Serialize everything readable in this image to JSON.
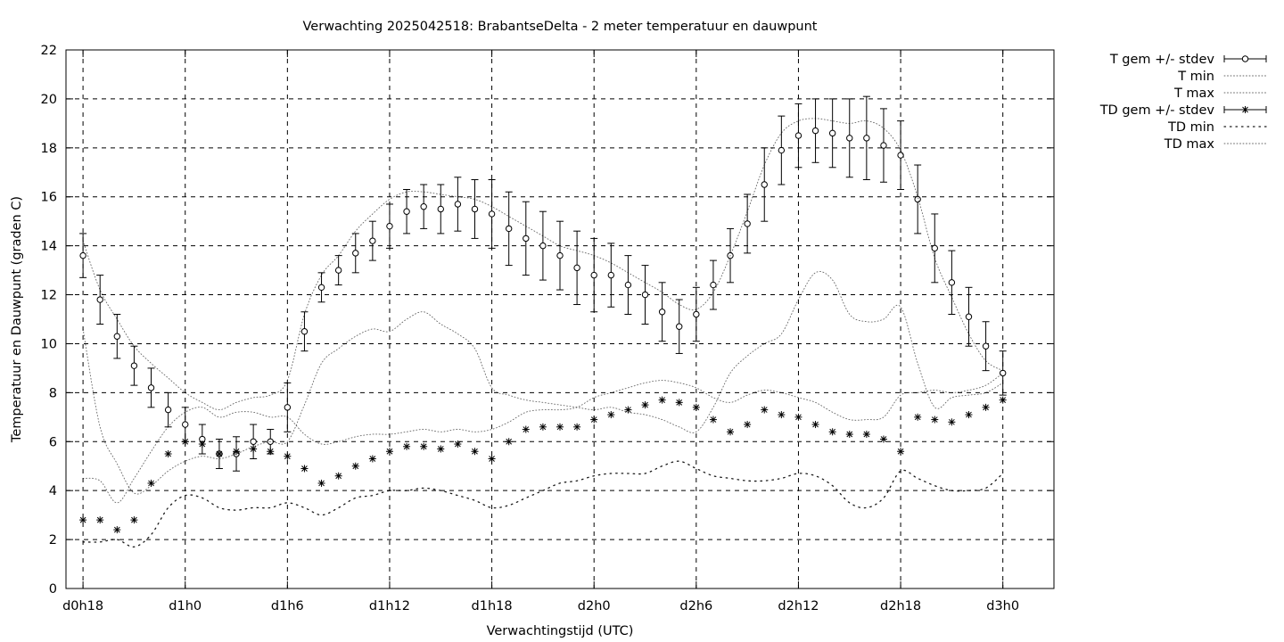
{
  "chart_data": {
    "type": "line",
    "title": "Verwachting 2025042518: BrabantseDelta - 2 meter temperatuur en dauwpunt",
    "xlabel": "Verwachtingstijd (UTC)",
    "ylabel": "Temperatuur en Dauwpunt (graden C)",
    "xlim": [
      17,
      75
    ],
    "ylim": [
      0,
      22
    ],
    "yticks": [
      0,
      2,
      4,
      6,
      8,
      10,
      12,
      14,
      16,
      18,
      20,
      22
    ],
    "xticks": [
      {
        "x": 18,
        "label": "d0h18"
      },
      {
        "x": 24,
        "label": "d1h0"
      },
      {
        "x": 30,
        "label": "d1h6"
      },
      {
        "x": 36,
        "label": "d1h12"
      },
      {
        "x": 42,
        "label": "d1h18"
      },
      {
        "x": 48,
        "label": "d2h0"
      },
      {
        "x": 54,
        "label": "d2h6"
      },
      {
        "x": 60,
        "label": "d2h12"
      },
      {
        "x": 66,
        "label": "d2h18"
      },
      {
        "x": 72,
        "label": "d3h0"
      }
    ],
    "grid": true,
    "legend_position": "outside-top-right",
    "x": [
      18,
      19,
      20,
      21,
      22,
      23,
      24,
      25,
      26,
      27,
      28,
      29,
      30,
      31,
      32,
      33,
      34,
      35,
      36,
      37,
      38,
      39,
      40,
      41,
      42,
      43,
      44,
      45,
      46,
      47,
      48,
      49,
      50,
      51,
      52,
      53,
      54,
      55,
      56,
      57,
      58,
      59,
      60,
      61,
      62,
      63,
      64,
      65,
      66,
      67,
      68,
      69,
      70,
      71,
      72
    ],
    "series": [
      {
        "name": "T gem +/- stdev",
        "marker": "circle",
        "values": [
          13.6,
          11.8,
          10.3,
          9.1,
          8.2,
          7.3,
          6.7,
          6.1,
          5.5,
          5.5,
          6.0,
          6.0,
          7.4,
          10.5,
          12.3,
          13.0,
          13.7,
          14.2,
          14.8,
          15.4,
          15.6,
          15.5,
          15.7,
          15.5,
          15.3,
          14.7,
          14.3,
          14.0,
          13.6,
          13.1,
          12.8,
          12.8,
          12.4,
          12.0,
          11.3,
          10.7,
          11.2,
          12.4,
          13.6,
          14.9,
          16.5,
          17.9,
          18.5,
          18.7,
          18.6,
          18.4,
          18.4,
          18.1,
          17.7,
          15.9,
          13.9,
          12.5,
          11.1,
          9.9,
          8.8
        ],
        "stdev": [
          0.9,
          1.0,
          0.9,
          0.8,
          0.8,
          0.7,
          0.7,
          0.6,
          0.6,
          0.7,
          0.7,
          0.5,
          1.0,
          0.8,
          0.6,
          0.6,
          0.8,
          0.8,
          0.9,
          0.9,
          0.9,
          1.0,
          1.1,
          1.2,
          1.4,
          1.5,
          1.5,
          1.4,
          1.4,
          1.5,
          1.5,
          1.3,
          1.2,
          1.2,
          1.2,
          1.1,
          1.1,
          1.0,
          1.1,
          1.2,
          1.5,
          1.4,
          1.3,
          1.3,
          1.4,
          1.6,
          1.7,
          1.5,
          1.4,
          1.4,
          1.4,
          1.3,
          1.2,
          1.0,
          0.9
        ]
      },
      {
        "name": "T min",
        "line": "dotted",
        "values": [
          10.6,
          6.6,
          5.1,
          3.9,
          4.2,
          4.8,
          5.2,
          5.4,
          5.3,
          5.5,
          5.8,
          6.0,
          6.0,
          7.5,
          9.2,
          9.8,
          10.3,
          10.6,
          10.5,
          11.0,
          11.3,
          10.8,
          10.4,
          9.8,
          8.2,
          7.9,
          7.7,
          7.6,
          7.5,
          7.4,
          7.3,
          7.4,
          7.2,
          7.1,
          6.9,
          6.6,
          6.4,
          7.4,
          8.8,
          9.5,
          10.0,
          10.4,
          11.8,
          12.9,
          12.6,
          11.2,
          10.9,
          11.0,
          11.5,
          9.2,
          7.4,
          7.8,
          7.9,
          8.0,
          8.4
        ]
      },
      {
        "name": "T max",
        "line": "dotted",
        "values": [
          14.2,
          12.2,
          11.0,
          9.9,
          9.2,
          8.6,
          8.0,
          7.6,
          7.3,
          7.6,
          7.8,
          7.9,
          8.5,
          11.2,
          12.8,
          13.6,
          14.6,
          15.3,
          15.9,
          16.2,
          16.2,
          16.1,
          16.0,
          15.9,
          15.6,
          15.2,
          14.8,
          14.4,
          14.0,
          13.8,
          13.6,
          13.3,
          12.9,
          12.5,
          12.1,
          11.6,
          11.4,
          12.1,
          13.6,
          15.4,
          17.3,
          18.6,
          19.1,
          19.2,
          19.1,
          19.0,
          19.1,
          18.8,
          17.9,
          16.0,
          13.5,
          11.9,
          10.4,
          9.3,
          8.9
        ]
      },
      {
        "name": "TD gem +/- stdev",
        "marker": "star",
        "values": [
          2.8,
          2.8,
          2.4,
          2.8,
          4.3,
          5.5,
          6.0,
          5.9,
          5.5,
          5.6,
          5.7,
          5.6,
          5.4,
          4.9,
          4.3,
          4.6,
          5.0,
          5.3,
          5.6,
          5.8,
          5.8,
          5.7,
          5.9,
          5.6,
          5.3,
          6.0,
          6.5,
          6.6,
          6.6,
          6.6,
          6.9,
          7.1,
          7.3,
          7.5,
          7.7,
          7.6,
          7.4,
          6.9,
          6.4,
          6.7,
          7.3,
          7.1,
          7.0,
          6.7,
          6.4,
          6.3,
          6.3,
          6.1,
          5.6,
          7.0,
          6.9,
          6.8,
          7.1,
          7.4,
          7.7
        ]
      },
      {
        "name": "TD min",
        "line": "dotted",
        "values": [
          1.9,
          1.9,
          2.0,
          1.7,
          2.2,
          3.3,
          3.8,
          3.7,
          3.3,
          3.2,
          3.3,
          3.3,
          3.5,
          3.3,
          3.0,
          3.3,
          3.7,
          3.8,
          4.0,
          4.0,
          4.1,
          4.0,
          3.8,
          3.6,
          3.3,
          3.4,
          3.7,
          4.0,
          4.3,
          4.4,
          4.6,
          4.7,
          4.7,
          4.7,
          5.0,
          5.2,
          4.9,
          4.6,
          4.5,
          4.4,
          4.4,
          4.5,
          4.7,
          4.6,
          4.2,
          3.5,
          3.3,
          3.7,
          4.8,
          4.5,
          4.2,
          4.0,
          4.0,
          4.1,
          4.7
        ]
      },
      {
        "name": "TD max",
        "line": "dotted",
        "values": [
          4.5,
          4.4,
          3.5,
          4.5,
          5.6,
          6.6,
          7.2,
          7.4,
          7.0,
          7.2,
          7.2,
          7.0,
          7.0,
          6.3,
          5.9,
          6.0,
          6.2,
          6.3,
          6.3,
          6.4,
          6.5,
          6.4,
          6.5,
          6.4,
          6.5,
          6.8,
          7.2,
          7.3,
          7.3,
          7.4,
          7.8,
          8.0,
          8.2,
          8.4,
          8.5,
          8.4,
          8.2,
          7.8,
          7.6,
          7.9,
          8.1,
          8.0,
          7.8,
          7.6,
          7.2,
          6.9,
          6.9,
          7.0,
          7.9,
          8.0,
          8.1,
          8.0,
          8.1,
          8.3,
          8.8
        ]
      }
    ]
  }
}
